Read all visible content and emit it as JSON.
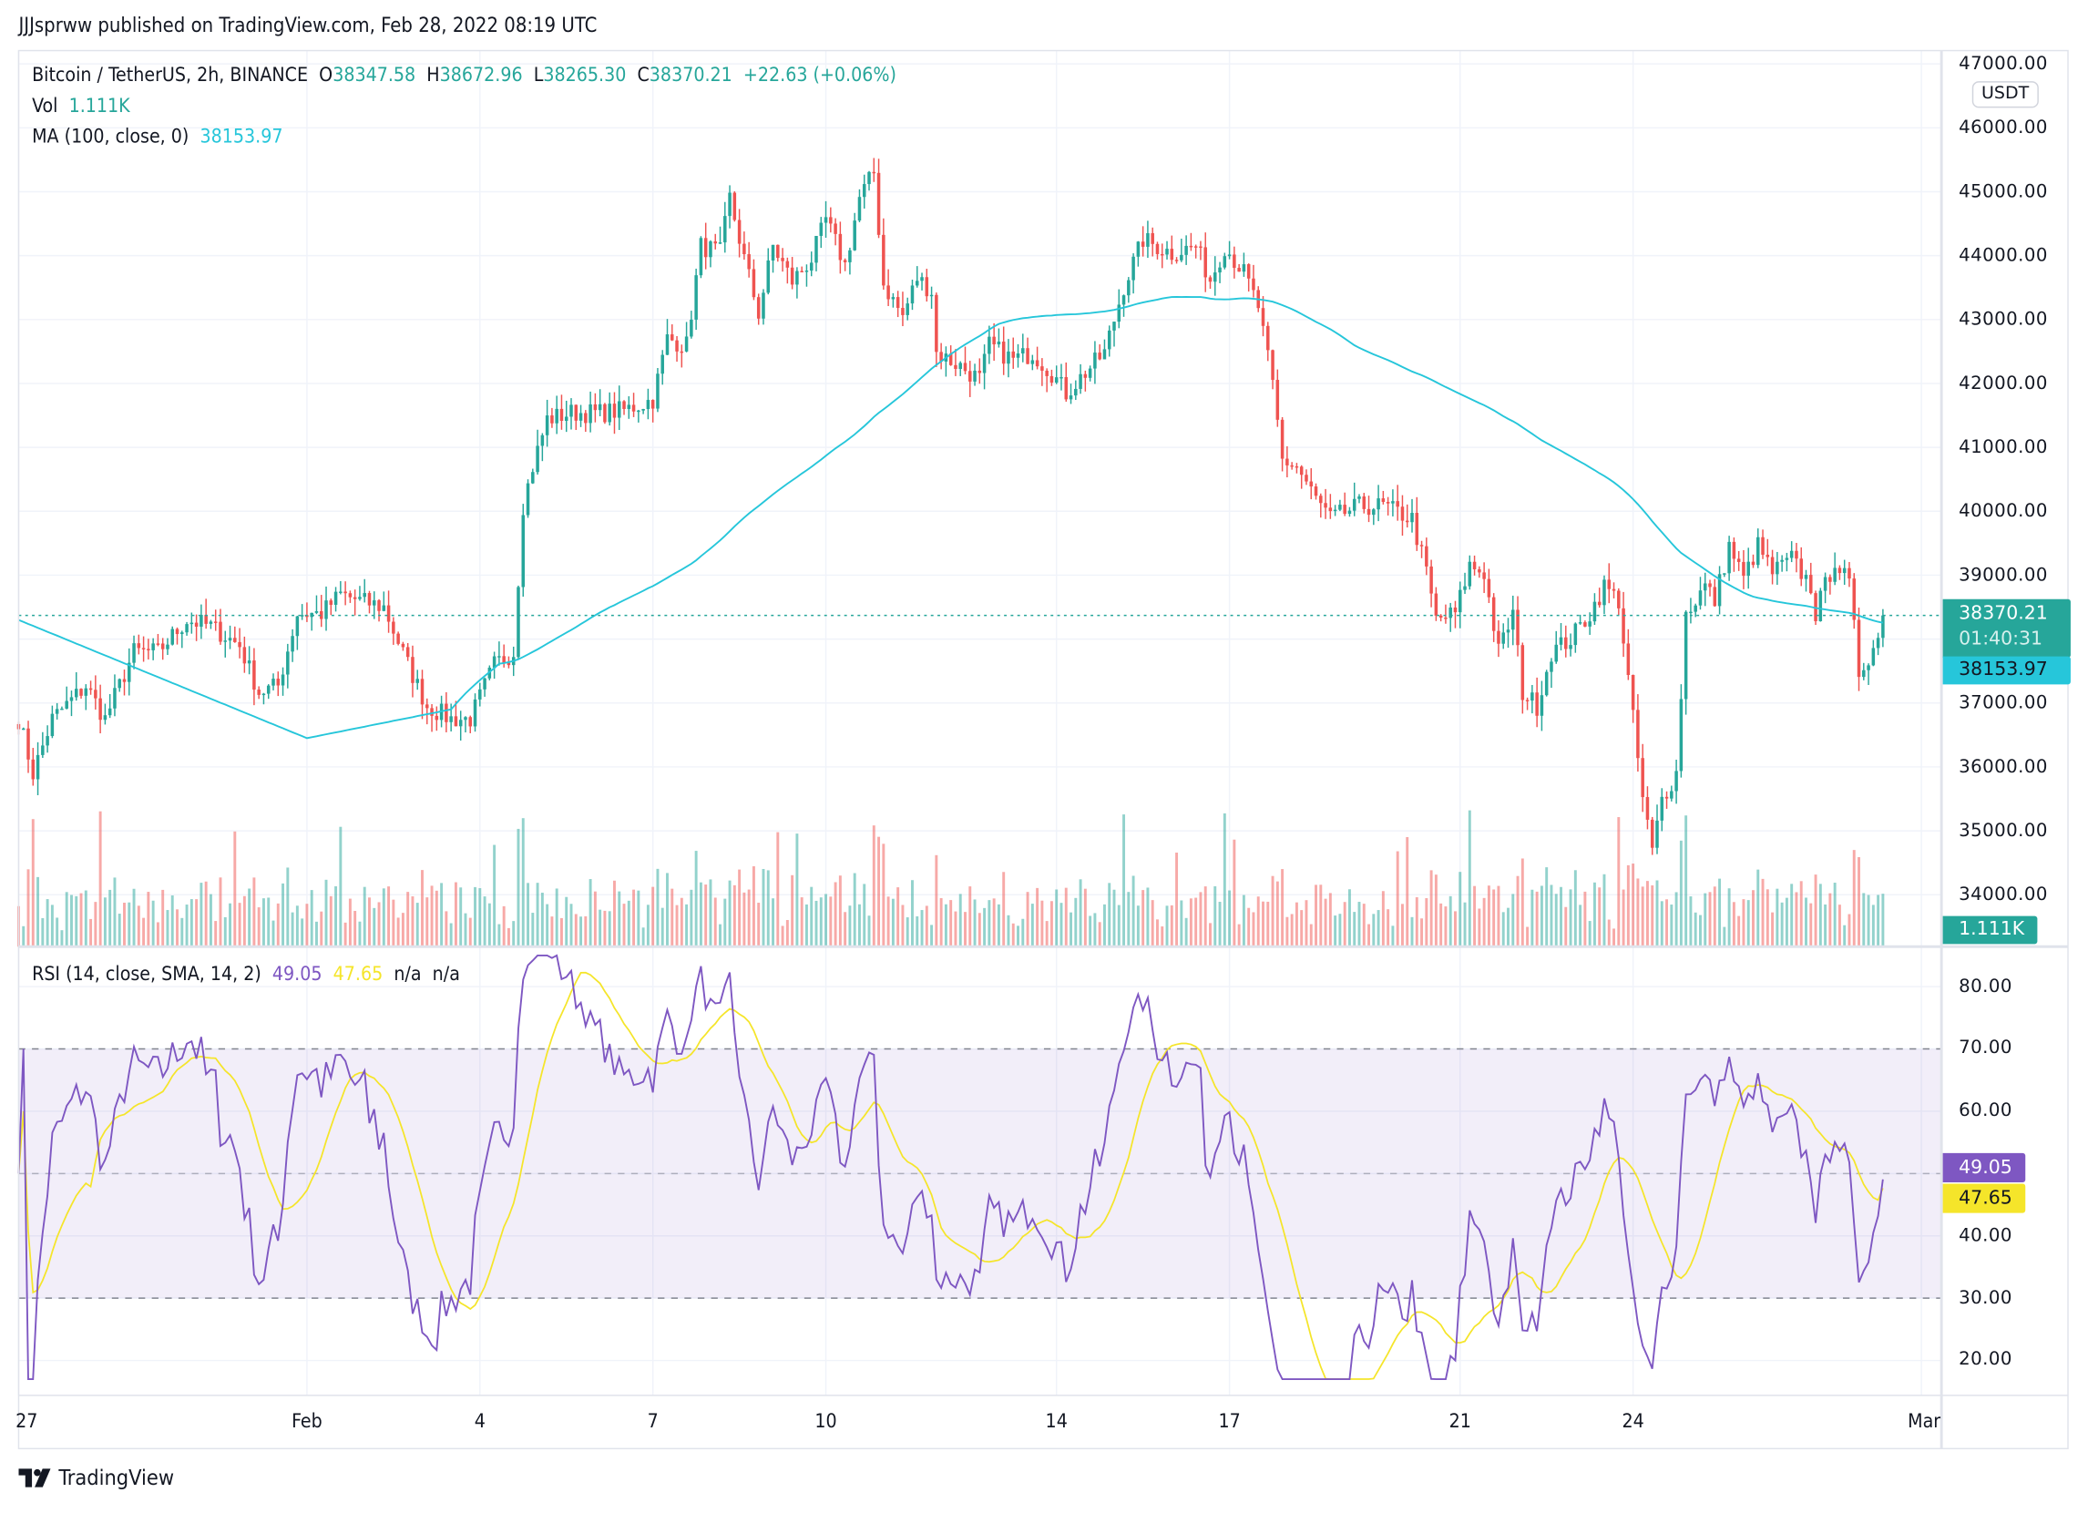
{
  "publisher_line": "JJJsprww published on TradingView.com, Feb 28, 2022 08:19 UTC",
  "legend": {
    "symbol": "Bitcoin / TetherUS, 2h, BINANCE",
    "open_label": "O",
    "open": "38347.58",
    "high_label": "H",
    "high": "38672.96",
    "low_label": "L",
    "low": "38265.30",
    "close_label": "C",
    "close": "38370.21",
    "change": "+22.63 (+0.06%)",
    "vol_label": "Vol",
    "vol": "1.111K",
    "ma_label": "MA (100, close, 0)",
    "ma": "38153.97",
    "rsi_label": "RSI (14, close, SMA, 14, 2)",
    "rsi": "49.05",
    "rsi_ma": "47.65",
    "na1": "n/a",
    "na2": "n/a"
  },
  "price_axis": {
    "currency": "USDT",
    "ticks": [
      "47000.00",
      "46000.00",
      "45000.00",
      "44000.00",
      "43000.00",
      "42000.00",
      "41000.00",
      "40000.00",
      "39000.00",
      "37000.00",
      "36000.00",
      "35000.00",
      "34000.00"
    ],
    "last_price_tag": "38370.21",
    "countdown_tag": "01:40:31",
    "ma_tag": "38153.97",
    "vol_tag": "1.111K"
  },
  "rsi_axis": {
    "ticks": [
      "80.00",
      "70.00",
      "60.00",
      "50.00",
      "40.00",
      "30.00",
      "20.00"
    ],
    "rsi_tag": "49.05",
    "rsi_ma_tag": "47.65"
  },
  "time_axis": {
    "ticks": [
      "27",
      "Feb",
      "4",
      "7",
      "10",
      "14",
      "17",
      "21",
      "24",
      "Mar"
    ]
  },
  "brand": "TradingView",
  "colors": {
    "up": "#26a69a",
    "down": "#ef5350",
    "ma": "#26c6da",
    "rsi": "#7e57c2",
    "rsi_ma": "#f5e52a",
    "rsi_band": "#7e57c2"
  },
  "chart_data": {
    "type": "candlestick",
    "interval": "2h",
    "symbol": "BTCUSDT",
    "ylim": [
      33700,
      47000
    ],
    "rsi_ylim": [
      17,
      85
    ],
    "rsi_bands": [
      30,
      50,
      70
    ],
    "ma_period": 100,
    "grid": true,
    "approx_closes": [
      [
        "01-27 00:00",
        36750
      ],
      [
        "01-27 06:00",
        35900
      ],
      [
        "01-27 14:00",
        36750
      ],
      [
        "01-28 04:00",
        37270
      ],
      [
        "01-28 12:00",
        36750
      ],
      [
        "01-29 00:00",
        37800
      ],
      [
        "01-29 10:00",
        37800
      ],
      [
        "01-29 22:00",
        38300
      ],
      [
        "01-30 08:00",
        38200
      ],
      [
        "01-30 20:00",
        37900
      ],
      [
        "01-31 04:00",
        37170
      ],
      [
        "01-31 12:00",
        37270
      ],
      [
        "01-31 20:00",
        38400
      ],
      [
        "02-01 06:00",
        38400
      ],
      [
        "02-01 14:00",
        38700
      ],
      [
        "02-01 22:00",
        38600
      ],
      [
        "02-02 08:00",
        38500
      ],
      [
        "02-02 18:00",
        37600
      ],
      [
        "02-03 02:00",
        36950
      ],
      [
        "02-03 12:00",
        36750
      ],
      [
        "02-03 20:00",
        36750
      ],
      [
        "02-04 06:00",
        37600
      ],
      [
        "02-04 14:00",
        37800
      ],
      [
        "02-04 18:00",
        40100
      ],
      [
        "02-04 22:00",
        40700
      ],
      [
        "02-05 04:00",
        41440
      ],
      [
        "02-05 14:00",
        41540
      ],
      [
        "02-06 02:00",
        41540
      ],
      [
        "02-06 12:00",
        41580
      ],
      [
        "02-07 00:00",
        41750
      ],
      [
        "02-07 06:00",
        42700
      ],
      [
        "02-07 14:00",
        42600
      ],
      [
        "02-07 20:00",
        44150
      ],
      [
        "02-08 04:00",
        44050
      ],
      [
        "02-08 08:00",
        44900
      ],
      [
        "02-08 14:00",
        43950
      ],
      [
        "02-08 20:00",
        43100
      ],
      [
        "02-09 02:00",
        44150
      ],
      [
        "02-09 10:00",
        43600
      ],
      [
        "02-09 18:00",
        43950
      ],
      [
        "02-10 00:00",
        44560
      ],
      [
        "02-10 08:00",
        43850
      ],
      [
        "02-10 14:00",
        44900
      ],
      [
        "02-10 20:00",
        45300
      ],
      [
        "02-11 00:00",
        43550
      ],
      [
        "02-11 08:00",
        43050
      ],
      [
        "02-11 14:00",
        43650
      ],
      [
        "02-11 20:00",
        43450
      ],
      [
        "02-11 22:00",
        42480
      ],
      [
        "02-12 08:00",
        42270
      ],
      [
        "02-12 16:00",
        42060
      ],
      [
        "02-12 20:00",
        42600
      ],
      [
        "02-13 06:00",
        42370
      ],
      [
        "02-13 14:00",
        42480
      ],
      [
        "02-13 22:00",
        42170
      ],
      [
        "02-14 04:00",
        41850
      ],
      [
        "02-14 12:00",
        42170
      ],
      [
        "02-14 20:00",
        42480
      ],
      [
        "02-15 04:00",
        43520
      ],
      [
        "02-15 12:00",
        44250
      ],
      [
        "02-16 00:00",
        44040
      ],
      [
        "02-16 10:00",
        44150
      ],
      [
        "02-16 16:00",
        43620
      ],
      [
        "02-16 22:00",
        44150
      ],
      [
        "02-17 06:00",
        43730
      ],
      [
        "02-17 12:00",
        43200
      ],
      [
        "02-17 18:00",
        41960
      ],
      [
        "02-17 22:00",
        40800
      ],
      [
        "02-18 04:00",
        40700
      ],
      [
        "02-18 12:00",
        40190
      ],
      [
        "02-18 18:00",
        39880
      ],
      [
        "02-19 06:00",
        40080
      ],
      [
        "02-19 16:00",
        40080
      ],
      [
        "02-20 04:00",
        39880
      ],
      [
        "02-20 10:00",
        39040
      ],
      [
        "02-20 14:00",
        38300
      ],
      [
        "02-20 22:00",
        38400
      ],
      [
        "02-21 04:00",
        39150
      ],
      [
        "02-21 10:00",
        39040
      ],
      [
        "02-21 16:00",
        37800
      ],
      [
        "02-21 22:00",
        38400
      ],
      [
        "02-22 02:00",
        37170
      ],
      [
        "02-22 08:00",
        36960
      ],
      [
        "02-22 14:00",
        37800
      ],
      [
        "02-22 22:00",
        38000
      ],
      [
        "02-23 06:00",
        38400
      ],
      [
        "02-23 12:00",
        38830
      ],
      [
        "02-23 18:00",
        38600
      ],
      [
        "02-23 22:00",
        37370
      ],
      [
        "02-24 04:00",
        35500
      ],
      [
        "02-24 08:00",
        34670
      ],
      [
        "02-24 12:00",
        35500
      ],
      [
        "02-24 18:00",
        35900
      ],
      [
        "02-24 22:00",
        38400
      ],
      [
        "02-25 06:00",
        38830
      ],
      [
        "02-25 10:00",
        38600
      ],
      [
        "02-25 16:00",
        39460
      ],
      [
        "02-25 22:00",
        38940
      ],
      [
        "02-26 04:00",
        39460
      ],
      [
        "02-26 10:00",
        39040
      ],
      [
        "02-26 18:00",
        39250
      ],
      [
        "02-27 02:00",
        38830
      ],
      [
        "02-27 04:00",
        38400
      ],
      [
        "02-27 12:00",
        39250
      ],
      [
        "02-27 18:00",
        38830
      ],
      [
        "02-27 22:00",
        37480
      ],
      [
        "02-28 06:00",
        38000
      ],
      [
        "02-28 08:00",
        38370.21
      ]
    ]
  }
}
